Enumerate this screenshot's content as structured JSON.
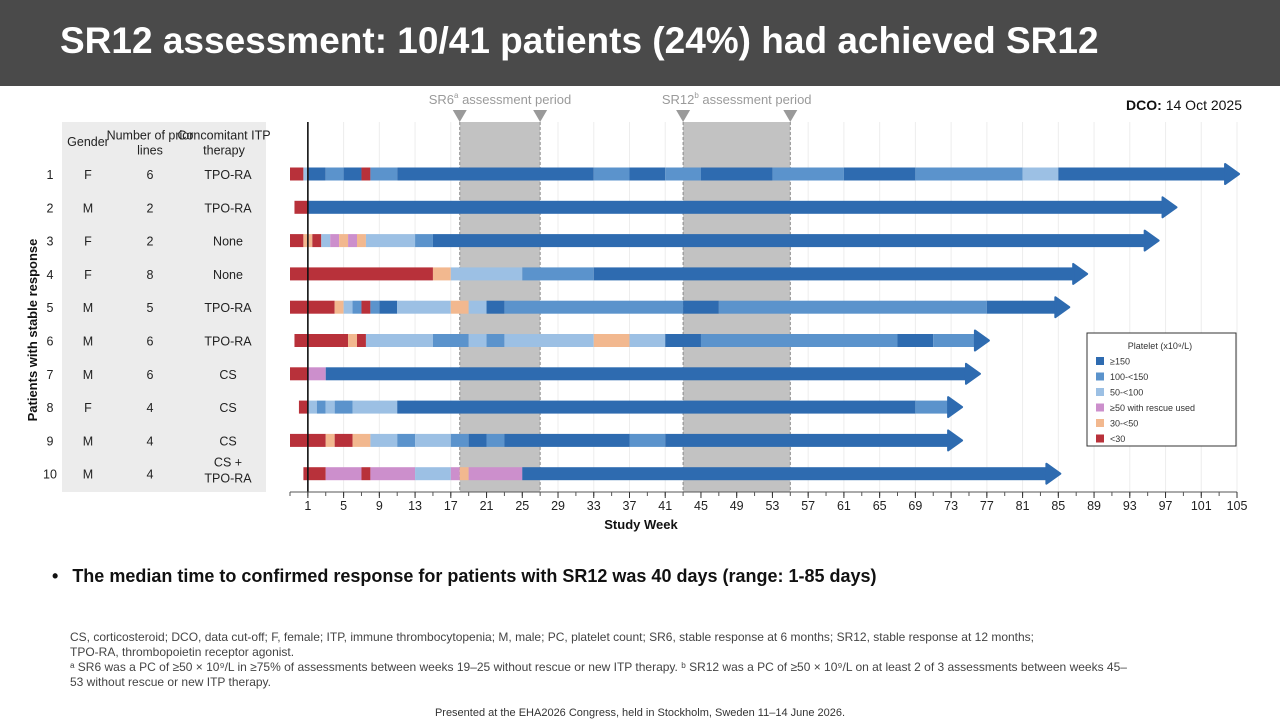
{
  "slide": {
    "title": "SR12 assessment: 10/41 patients (24%) had achieved SR12",
    "dco_label": "DCO:",
    "dco_value": "14 Oct 2025",
    "bullet": "The median time to confirmed response for patients with SR12 was 40 days (range: 1-85 days)",
    "footnotes": [
      "CS, corticosteroid; DCO, data cut-off; F, female; ITP, immune thrombocytopenia; M, male; PC, platelet count; SR6, stable response at 6 months; SR12, stable response at 12 months;",
      "TPO-RA, thrombopoietin receptor agonist.",
      "ᵃ SR6 was a PC of ≥50 × 10⁹/L in ≥75% of assessments between weeks 19–25 without rescue or new ITP therapy. ᵇ SR12 was a PC of ≥50 × 10⁹/L on at least 2 of 3 assessments between weeks 45–",
      "53 without rescue or new ITP therapy."
    ],
    "presented": "Presented at the EHA2026 Congress, held in Stockholm, Sweden 11–14 June 2026."
  },
  "chart_data": {
    "type": "bar",
    "subtype": "swimmer",
    "xlabel": "Study Week",
    "ylabel": "Patients with stable response",
    "x_ticks": [
      1,
      5,
      9,
      13,
      17,
      21,
      25,
      29,
      33,
      37,
      41,
      45,
      49,
      53,
      57,
      61,
      65,
      69,
      73,
      77,
      81,
      85,
      89,
      93,
      97,
      101,
      105
    ],
    "xlim": [
      -1,
      105
    ],
    "grid": true,
    "table_headers": {
      "gender": "Gender",
      "prior_lines": "Number of prior lines",
      "concomitant": "Concomitant ITP therapy"
    },
    "assessment_periods": [
      {
        "label": "SR6",
        "sup": "a",
        "suffix": " assessment period",
        "start": 18,
        "end": 27
      },
      {
        "label": "SR12",
        "sup": "b",
        "suffix": " assessment period",
        "start": 43,
        "end": 55
      }
    ],
    "legend": {
      "title": "Platelet (x10⁹/L)",
      "placement": "right",
      "items": [
        {
          "label": "≥150",
          "color": "#2e6bb0"
        },
        {
          "label": "100-<150",
          "color": "#5b93cc"
        },
        {
          "label": "50-<100",
          "color": "#9cc0e4"
        },
        {
          "label": "≥50 with rescue used",
          "color": "#cc8fcc"
        },
        {
          "label": "30-<50",
          "color": "#f2b88f"
        },
        {
          "label": "<30",
          "color": "#b8313a"
        }
      ]
    },
    "patients": [
      {
        "id": "1",
        "gender": "F",
        "prior_lines": "6",
        "therapy": [
          "TPO-RA"
        ],
        "end": 104,
        "segments": [
          [
            -1,
            0.5,
            5
          ],
          [
            0.5,
            1,
            2
          ],
          [
            1,
            3,
            0
          ],
          [
            3,
            5,
            1
          ],
          [
            5,
            7,
            0
          ],
          [
            7,
            8,
            5
          ],
          [
            8,
            11,
            1
          ],
          [
            11,
            33,
            0
          ],
          [
            33,
            37,
            1
          ],
          [
            37,
            41,
            0
          ],
          [
            41,
            45,
            1
          ],
          [
            45,
            53,
            0
          ],
          [
            53,
            61,
            1
          ],
          [
            61,
            69,
            0
          ],
          [
            69,
            81,
            1
          ],
          [
            81,
            85,
            2
          ],
          [
            85,
            104,
            0
          ]
        ]
      },
      {
        "id": "2",
        "gender": "M",
        "prior_lines": "2",
        "therapy": [
          "TPO-RA"
        ],
        "end": 97,
        "segments": [
          [
            -0.5,
            1,
            5
          ],
          [
            1,
            97,
            0
          ]
        ]
      },
      {
        "id": "3",
        "gender": "F",
        "prior_lines": "2",
        "therapy": [
          "None"
        ],
        "end": 95,
        "segments": [
          [
            -1,
            0.5,
            5
          ],
          [
            0.5,
            1.5,
            4
          ],
          [
            1.5,
            2.5,
            5
          ],
          [
            2.5,
            3.5,
            2
          ],
          [
            3.5,
            4.5,
            3
          ],
          [
            4.5,
            5.5,
            4
          ],
          [
            5.5,
            6.5,
            3
          ],
          [
            6.5,
            7.5,
            4
          ],
          [
            7.5,
            13,
            2
          ],
          [
            13,
            15,
            1
          ],
          [
            15,
            95,
            0
          ]
        ]
      },
      {
        "id": "4",
        "gender": "F",
        "prior_lines": "8",
        "therapy": [
          "None"
        ],
        "end": 87,
        "segments": [
          [
            -1,
            15,
            5
          ],
          [
            15,
            17,
            4
          ],
          [
            17,
            25,
            2
          ],
          [
            25,
            33,
            1
          ],
          [
            33,
            87,
            0
          ]
        ]
      },
      {
        "id": "5",
        "gender": "M",
        "prior_lines": "5",
        "therapy": [
          "TPO-RA"
        ],
        "end": 85,
        "segments": [
          [
            -1,
            4,
            5
          ],
          [
            4,
            5,
            4
          ],
          [
            5,
            6,
            2
          ],
          [
            6,
            7,
            1
          ],
          [
            7,
            8,
            5
          ],
          [
            8,
            9,
            1
          ],
          [
            9,
            11,
            0
          ],
          [
            11,
            17,
            2
          ],
          [
            17,
            19,
            4
          ],
          [
            19,
            21,
            2
          ],
          [
            21,
            23,
            0
          ],
          [
            23,
            43,
            1
          ],
          [
            43,
            47,
            0
          ],
          [
            47,
            77,
            1
          ],
          [
            77,
            85,
            0
          ]
        ]
      },
      {
        "id": "6",
        "gender": "M",
        "prior_lines": "6",
        "therapy": [
          "TPO-RA"
        ],
        "end": 76,
        "segments": [
          [
            -0.5,
            5.5,
            5
          ],
          [
            5.5,
            6.5,
            4
          ],
          [
            6.5,
            7.5,
            5
          ],
          [
            7.5,
            15,
            2
          ],
          [
            15,
            19,
            1
          ],
          [
            19,
            21,
            2
          ],
          [
            21,
            23,
            1
          ],
          [
            23,
            33,
            2
          ],
          [
            33,
            37,
            4
          ],
          [
            37,
            41,
            2
          ],
          [
            41,
            45,
            0
          ],
          [
            45,
            67,
            1
          ],
          [
            67,
            71,
            0
          ],
          [
            71,
            76,
            1
          ]
        ]
      },
      {
        "id": "7",
        "gender": "M",
        "prior_lines": "6",
        "therapy": [
          "CS"
        ],
        "end": 75,
        "segments": [
          [
            -1,
            1,
            5
          ],
          [
            1,
            3,
            3
          ],
          [
            3,
            75,
            0
          ]
        ]
      },
      {
        "id": "8",
        "gender": "F",
        "prior_lines": "4",
        "therapy": [
          "CS"
        ],
        "end": 73,
        "segments": [
          [
            0,
            1,
            5
          ],
          [
            1,
            2,
            2
          ],
          [
            2,
            3,
            1
          ],
          [
            3,
            4,
            2
          ],
          [
            4,
            6,
            1
          ],
          [
            6,
            11,
            2
          ],
          [
            11,
            69,
            0
          ],
          [
            69,
            73,
            1
          ]
        ]
      },
      {
        "id": "9",
        "gender": "M",
        "prior_lines": "4",
        "therapy": [
          "CS"
        ],
        "end": 73,
        "segments": [
          [
            -1,
            3,
            5
          ],
          [
            3,
            4,
            4
          ],
          [
            4,
            6,
            5
          ],
          [
            6,
            8,
            4
          ],
          [
            8,
            11,
            2
          ],
          [
            11,
            13,
            1
          ],
          [
            13,
            17,
            2
          ],
          [
            17,
            19,
            1
          ],
          [
            19,
            21,
            0
          ],
          [
            21,
            23,
            1
          ],
          [
            23,
            37,
            0
          ],
          [
            37,
            41,
            1
          ],
          [
            41,
            73,
            0
          ]
        ]
      },
      {
        "id": "10",
        "gender": "M",
        "prior_lines": "4",
        "therapy": [
          "CS +",
          "TPO-RA"
        ],
        "end": 84,
        "segments": [
          [
            0.5,
            3,
            5
          ],
          [
            3,
            7,
            3
          ],
          [
            7,
            8,
            5
          ],
          [
            8,
            13,
            3
          ],
          [
            13,
            17,
            2
          ],
          [
            17,
            18,
            3
          ],
          [
            18,
            19,
            4
          ],
          [
            19,
            25,
            3
          ],
          [
            25,
            84,
            0
          ]
        ]
      }
    ]
  }
}
